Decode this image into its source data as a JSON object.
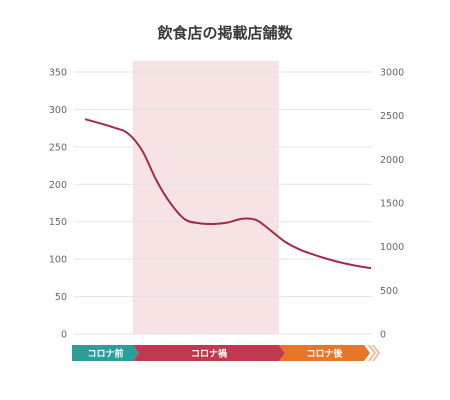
{
  "chart_data": {
    "type": "line",
    "title": "飲食店の掲載店舗数",
    "xlabel": "",
    "ylabel": "",
    "y_left_ticks": [
      0,
      50,
      100,
      150,
      200,
      250,
      300,
      350
    ],
    "y_right_ticks": [
      0,
      500,
      1000,
      1500,
      2000,
      2500,
      3000
    ],
    "ylim_left": [
      0,
      350
    ],
    "ylim_right": [
      0,
      3000
    ],
    "grid": true,
    "x": [
      0,
      0.1,
      0.15,
      0.2,
      0.25,
      0.3,
      0.35,
      0.4,
      0.45,
      0.5,
      0.55,
      0.6,
      0.65,
      0.7,
      0.75,
      0.8,
      0.85,
      0.9,
      0.95,
      1.0
    ],
    "series": [
      {
        "values": [
          287,
          276,
          268,
          245,
          205,
          174,
          153,
          148,
          147,
          149,
          154,
          152,
          138,
          123,
          113,
          106,
          100,
          95,
          91,
          88
        ],
        "color": "#a52a45"
      }
    ],
    "phases": [
      {
        "label": "コロナ前",
        "color": "#2a9e9a"
      },
      {
        "label": "コロナ禍",
        "color": "#c0394e"
      },
      {
        "label": "コロナ後",
        "color": "#e67628"
      }
    ],
    "shaded_phase": "コロナ禍",
    "shade_color": "#f6e3e4"
  }
}
